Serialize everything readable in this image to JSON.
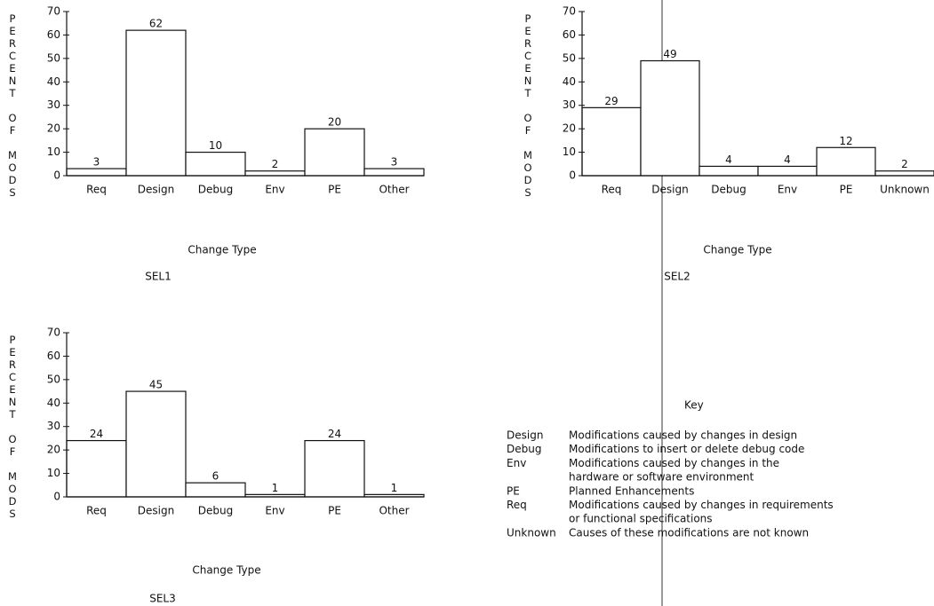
{
  "chart_data": [
    {
      "type": "bar",
      "title": "SEL1",
      "x_label": "Change Type",
      "y_label": "PERCENT OF MODS",
      "categories": [
        "Req",
        "Design",
        "Debug",
        "Env",
        "PE",
        "Other"
      ],
      "values": [
        3,
        62,
        10,
        2,
        20,
        3
      ],
      "color": "#ffffff",
      "ylim": [
        0,
        70
      ],
      "yticks": [
        0,
        10,
        20,
        30,
        40,
        50,
        60,
        70
      ]
    },
    {
      "type": "bar",
      "title": "SEL2",
      "x_label": "Change Type",
      "y_label": "PERCENT OF MODS",
      "categories": [
        "Req",
        "Design",
        "Debug",
        "Env",
        "PE",
        "Unknown"
      ],
      "values": [
        29,
        49,
        4,
        4,
        12,
        2
      ],
      "color": "#ffffff",
      "ylim": [
        0,
        70
      ],
      "yticks": [
        0,
        10,
        20,
        30,
        40,
        50,
        60,
        70
      ]
    },
    {
      "type": "bar",
      "title": "SEL3",
      "x_label": "Change Type",
      "y_label": "PERCENT OF MODS",
      "categories": [
        "Req",
        "Design",
        "Debug",
        "Env",
        "PE",
        "Other"
      ],
      "values": [
        24,
        45,
        6,
        1,
        24,
        1
      ],
      "color": "#ffffff",
      "ylim": [
        0,
        70
      ],
      "yticks": [
        0,
        10,
        20,
        30,
        40,
        50,
        60,
        70
      ]
    }
  ],
  "key": {
    "title": "Key",
    "entries": [
      {
        "term": "Design",
        "lines": [
          "Modifications caused by changes in design"
        ]
      },
      {
        "term": "Debug",
        "lines": [
          "Modifications to insert or delete debug code"
        ]
      },
      {
        "term": "Env",
        "lines": [
          "Modifications caused by changes in the",
          "hardware or software environment"
        ]
      },
      {
        "term": "PE",
        "lines": [
          "Planned Enhancements"
        ]
      },
      {
        "term": "Req",
        "lines": [
          "Modifications caused by changes in requirements",
          "or functional specifications"
        ]
      },
      {
        "term": "Unknown",
        "lines": [
          "Causes of these modifications are not known"
        ]
      }
    ]
  }
}
